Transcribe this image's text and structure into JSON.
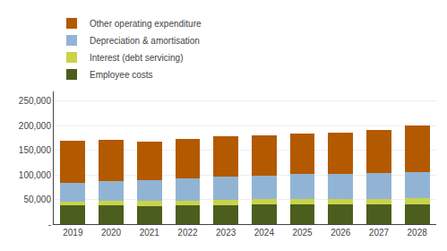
{
  "chart_data": {
    "type": "bar",
    "stacked": true,
    "categories": [
      "2019",
      "2020",
      "2021",
      "2022",
      "2023",
      "2024",
      "2025",
      "2026",
      "2027",
      "2028"
    ],
    "series": [
      {
        "name": "Employee costs",
        "color": "#4c5e1e",
        "values": [
          38000,
          38000,
          37000,
          38000,
          39000,
          40000,
          40000,
          40000,
          40000,
          40000
        ]
      },
      {
        "name": "Interest (debt servicing)",
        "color": "#c8d44a",
        "values": [
          8000,
          9000,
          10000,
          10000,
          10000,
          11000,
          12000,
          12000,
          12000,
          13000
        ]
      },
      {
        "name": "Depreciation & amortisation",
        "color": "#92b4d4",
        "values": [
          38000,
          40000,
          42000,
          45000,
          48000,
          48000,
          50000,
          50000,
          52000,
          52000
        ]
      },
      {
        "name": "Other operating expenditure",
        "color": "#b35900",
        "values": [
          86000,
          84000,
          79000,
          80000,
          81000,
          82000,
          82000,
          84000,
          88000,
          95000
        ]
      }
    ],
    "ylim": [
      0,
      270000
    ],
    "yticks": [
      {
        "value": 0,
        "label": "-"
      },
      {
        "value": 50000,
        "label": "50,000"
      },
      {
        "value": 100000,
        "label": "100,000"
      },
      {
        "value": 150000,
        "label": "150,000"
      },
      {
        "value": 200000,
        "label": "200,000"
      },
      {
        "value": 250000,
        "label": "250,000"
      }
    ],
    "grid": true,
    "legend": "upper left"
  }
}
